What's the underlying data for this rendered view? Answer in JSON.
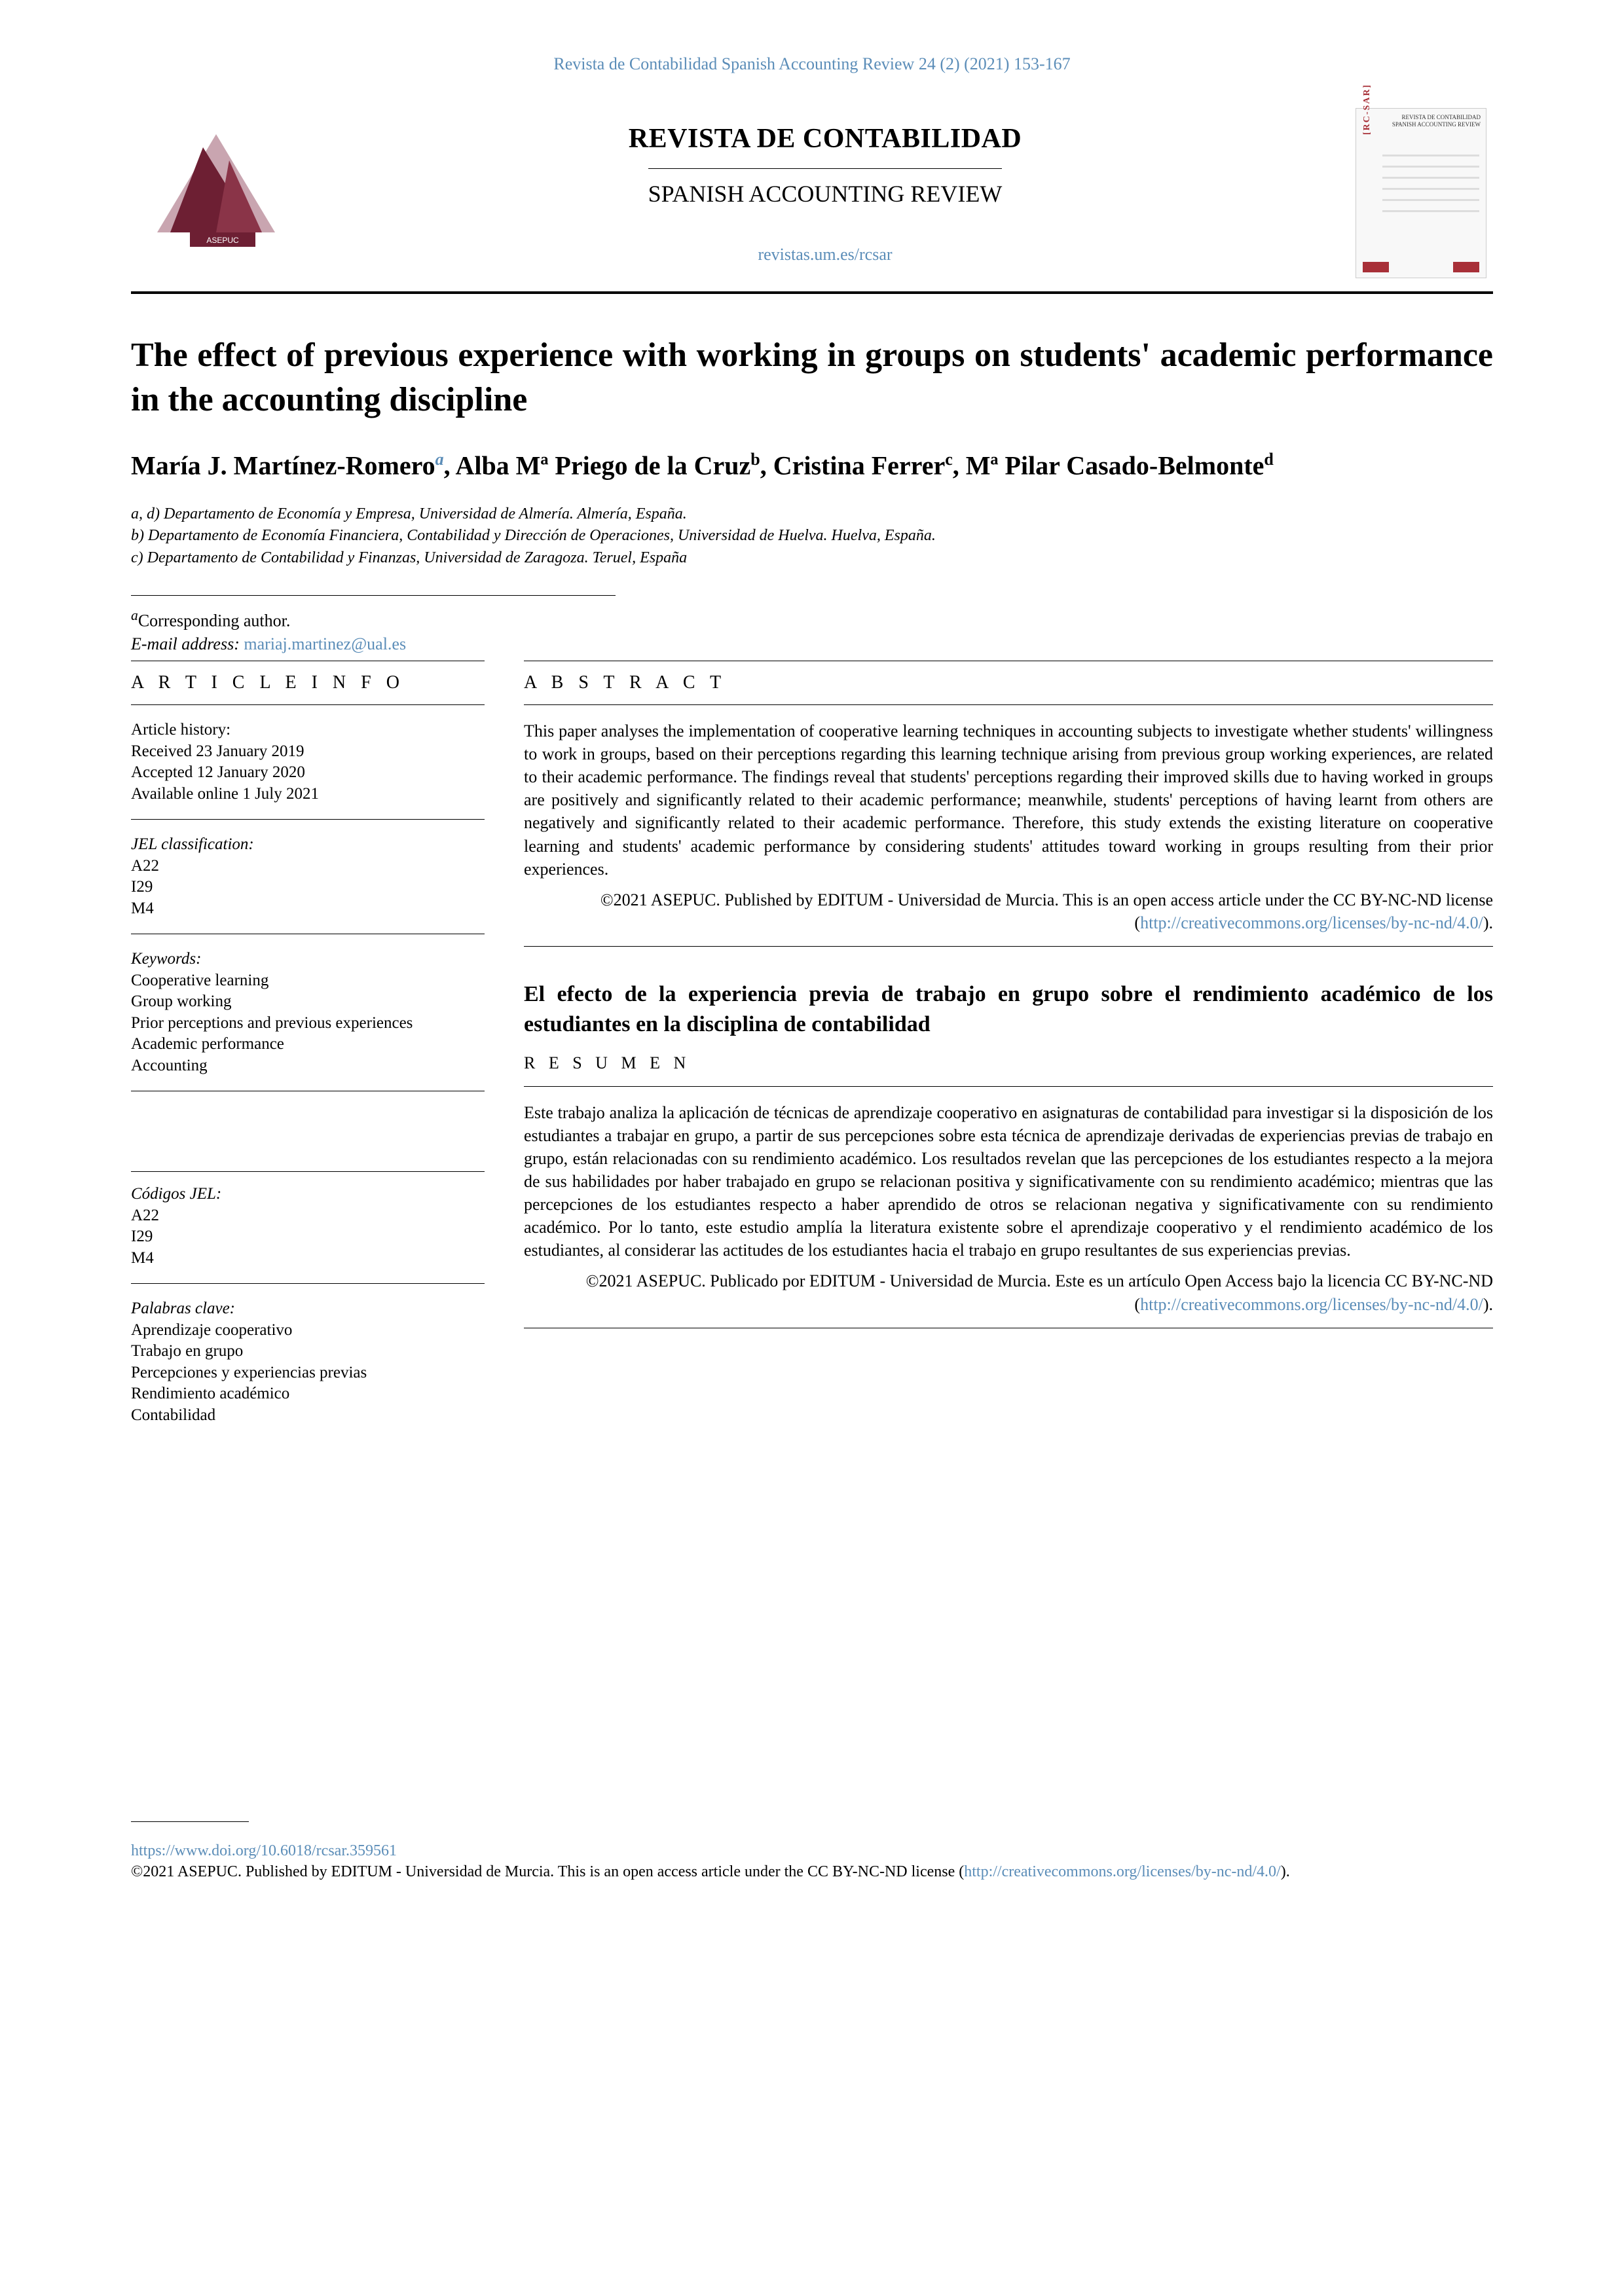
{
  "header": {
    "top_link": "Revista de Contabilidad  Spanish Accounting Review 24 (2) (2021) 153-167",
    "journal_main": "REVISTA DE CONTABILIDAD",
    "journal_sub": "SPANISH ACCOUNTING REVIEW",
    "journal_url": "revistas.um.es/rcsar",
    "logo_label": "ASEPUC",
    "cover_label": "[RC-SAR]",
    "cover_top1": "REVISTA DE CONTABILIDAD",
    "cover_top2": "SPANISH ACCOUNTING REVIEW"
  },
  "article": {
    "title": "The effect of previous experience with working in groups on students' academic performance in the accounting discipline",
    "authors_html": "María J. Martínez-Romero|a*|, Alba Mª Priego de la Cruz|b|, Cristina Ferrer|c|, Mª Pilar Casado-Belmonte|d|",
    "authors": [
      {
        "name": "María J. Martínez-Romero",
        "sup": "a",
        "corr": true
      },
      {
        "name": "Alba Mª Priego de la Cruz",
        "sup": "b",
        "corr": false
      },
      {
        "name": "Cristina Ferrer",
        "sup": "c",
        "corr": false
      },
      {
        "name": "Mª Pilar Casado-Belmonte",
        "sup": "d",
        "corr": false
      }
    ],
    "affiliations": [
      "a, d) Departamento de Economía y Empresa, Universidad de Almería. Almería, España.",
      "b) Departamento de Economía Financiera, Contabilidad y Dirección de Operaciones, Universidad de Huelva. Huelva, España.",
      "c) Departamento de Contabilidad y Finanzas, Universidad de Zaragoza. Teruel, España"
    ],
    "corresponding_label": "Corresponding author.",
    "corresponding_sup": "a",
    "email_label": "E-mail address:",
    "email": "mariaj.martinez@ual.es"
  },
  "info": {
    "heading": "A R T I C L E   I N F O",
    "history_label": "Article history:",
    "history": [
      "Received 23 January 2019",
      "Accepted 12 January 2020",
      "Available online 1 July 2021"
    ],
    "jel_label": "JEL classification:",
    "jel": [
      "A22",
      "I29",
      "M4"
    ],
    "keywords_label": "Keywords:",
    "keywords": [
      "Cooperative learning",
      "Group working",
      "Prior perceptions and previous experiences",
      "Academic performance",
      "Accounting"
    ],
    "codigos_label": "Códigos JEL:",
    "codigos": [
      "A22",
      "I29",
      "M4"
    ],
    "palabras_label": "Palabras clave:",
    "palabras": [
      "Aprendizaje cooperativo",
      "Trabajo en grupo",
      "Percepciones y experiencias previas",
      "Rendimiento académico",
      "Contabilidad"
    ]
  },
  "abstract": {
    "heading": "A B S T R A C T",
    "text": "This paper analyses the implementation of cooperative learning techniques in accounting subjects to investigate whether students' willingness to work in groups, based on their perceptions regarding this learning technique arising from previous group working experiences, are related to their academic performance. The findings reveal that students' perceptions regarding their improved skills due to having worked in groups are positively and significantly related to their academic performance; meanwhile, students' perceptions of having learnt from others are negatively and significantly related to their academic performance. Therefore, this study extends the existing literature on cooperative learning and students' academic performance by considering students' attitudes toward working in groups resulting from their prior experiences.",
    "license_pre": "©2021 ASEPUC. Published by EDITUM - Universidad de Murcia. This is an open access article under the CC BY-NC-ND license (",
    "license_url": "http://creativecommons.org/licenses/by-nc-nd/4.0/",
    "license_post": ")."
  },
  "spanish": {
    "title": "El efecto de la experiencia previa de trabajo en grupo sobre el rendimiento académico de los estudiantes en la disciplina de contabilidad",
    "heading": "R E S U M E N",
    "text": "Este trabajo analiza la aplicación de técnicas de aprendizaje cooperativo en asignaturas de contabilidad para investigar si la disposición de los estudiantes a trabajar en grupo, a partir de sus percepciones sobre esta técnica de aprendizaje derivadas de experiencias previas de trabajo en grupo, están relacionadas con su rendimiento académico. Los resultados revelan que las percepciones de los estudiantes respecto a la mejora de sus habilidades por haber trabajado en grupo se relacionan positiva y significativamente con su rendimiento académico; mientras que las percepciones de los estudiantes respecto a haber aprendido de otros se relacionan negativa y significativamente con su rendimiento académico. Por lo tanto, este estudio amplía la literatura existente sobre el aprendizaje cooperativo y el rendimiento académico de los estudiantes, al considerar las actitudes de los estudiantes hacia el trabajo en grupo resultantes de sus experiencias previas.",
    "license_pre": "©2021 ASEPUC. Publicado por EDITUM - Universidad de Murcia. Este es un artículo Open Access bajo la licencia CC BY-NC-ND (",
    "license_url": "http://creativecommons.org/licenses/by-nc-nd/4.0/",
    "license_post": ")."
  },
  "footer": {
    "doi": "https://www.doi.org/10.6018/rcsar.359561",
    "text_pre": "©2021 ASEPUC. Published by EDITUM - Universidad de Murcia. This is an open access article under the CC BY-NC-ND license (",
    "text_url": "http://creativecommons.org/licenses/by-nc-nd/4.0/",
    "text_post": ")."
  },
  "colors": {
    "link": "#5b8db8",
    "logo_dark": "#6d1f33",
    "logo_light": "#c9a5b0",
    "text": "#000000",
    "bg": "#ffffff"
  }
}
